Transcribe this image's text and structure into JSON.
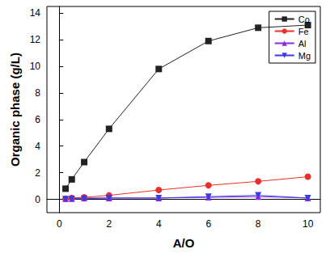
{
  "chart_data": {
    "type": "line",
    "x_label": "A/O",
    "y_label": "Organic phase (g/L)",
    "x": [
      0.25,
      0.5,
      1,
      2,
      4,
      6,
      8,
      10
    ],
    "series": [
      {
        "name": "Co",
        "color": "#222222",
        "marker": "square",
        "values": [
          0.8,
          1.5,
          2.8,
          5.3,
          9.8,
          11.9,
          12.9,
          13.1
        ]
      },
      {
        "name": "Fe",
        "color": "#e8312b",
        "marker": "circle",
        "values": [
          0.05,
          0.1,
          0.15,
          0.3,
          0.7,
          1.05,
          1.35,
          1.7
        ]
      },
      {
        "name": "Al",
        "color": "#8a2be2",
        "marker": "triangle",
        "values": [
          0.05,
          0.05,
          0.1,
          0.1,
          0.1,
          0.15,
          0.2,
          0.1
        ]
      },
      {
        "name": "Mg",
        "color": "#3a3adf",
        "marker": "triangle_down",
        "values": [
          0.02,
          0.03,
          0.05,
          0.1,
          0.1,
          0.2,
          0.3,
          0.1
        ]
      }
    ],
    "xlim": [
      -0.5,
      10.5
    ],
    "xticks": [
      0,
      2,
      4,
      6,
      8,
      10
    ],
    "ylim": [
      -1,
      14.5
    ],
    "yticks": [
      0,
      2,
      4,
      6,
      8,
      10,
      12,
      14
    ],
    "grid": false,
    "legend": "upper right"
  }
}
